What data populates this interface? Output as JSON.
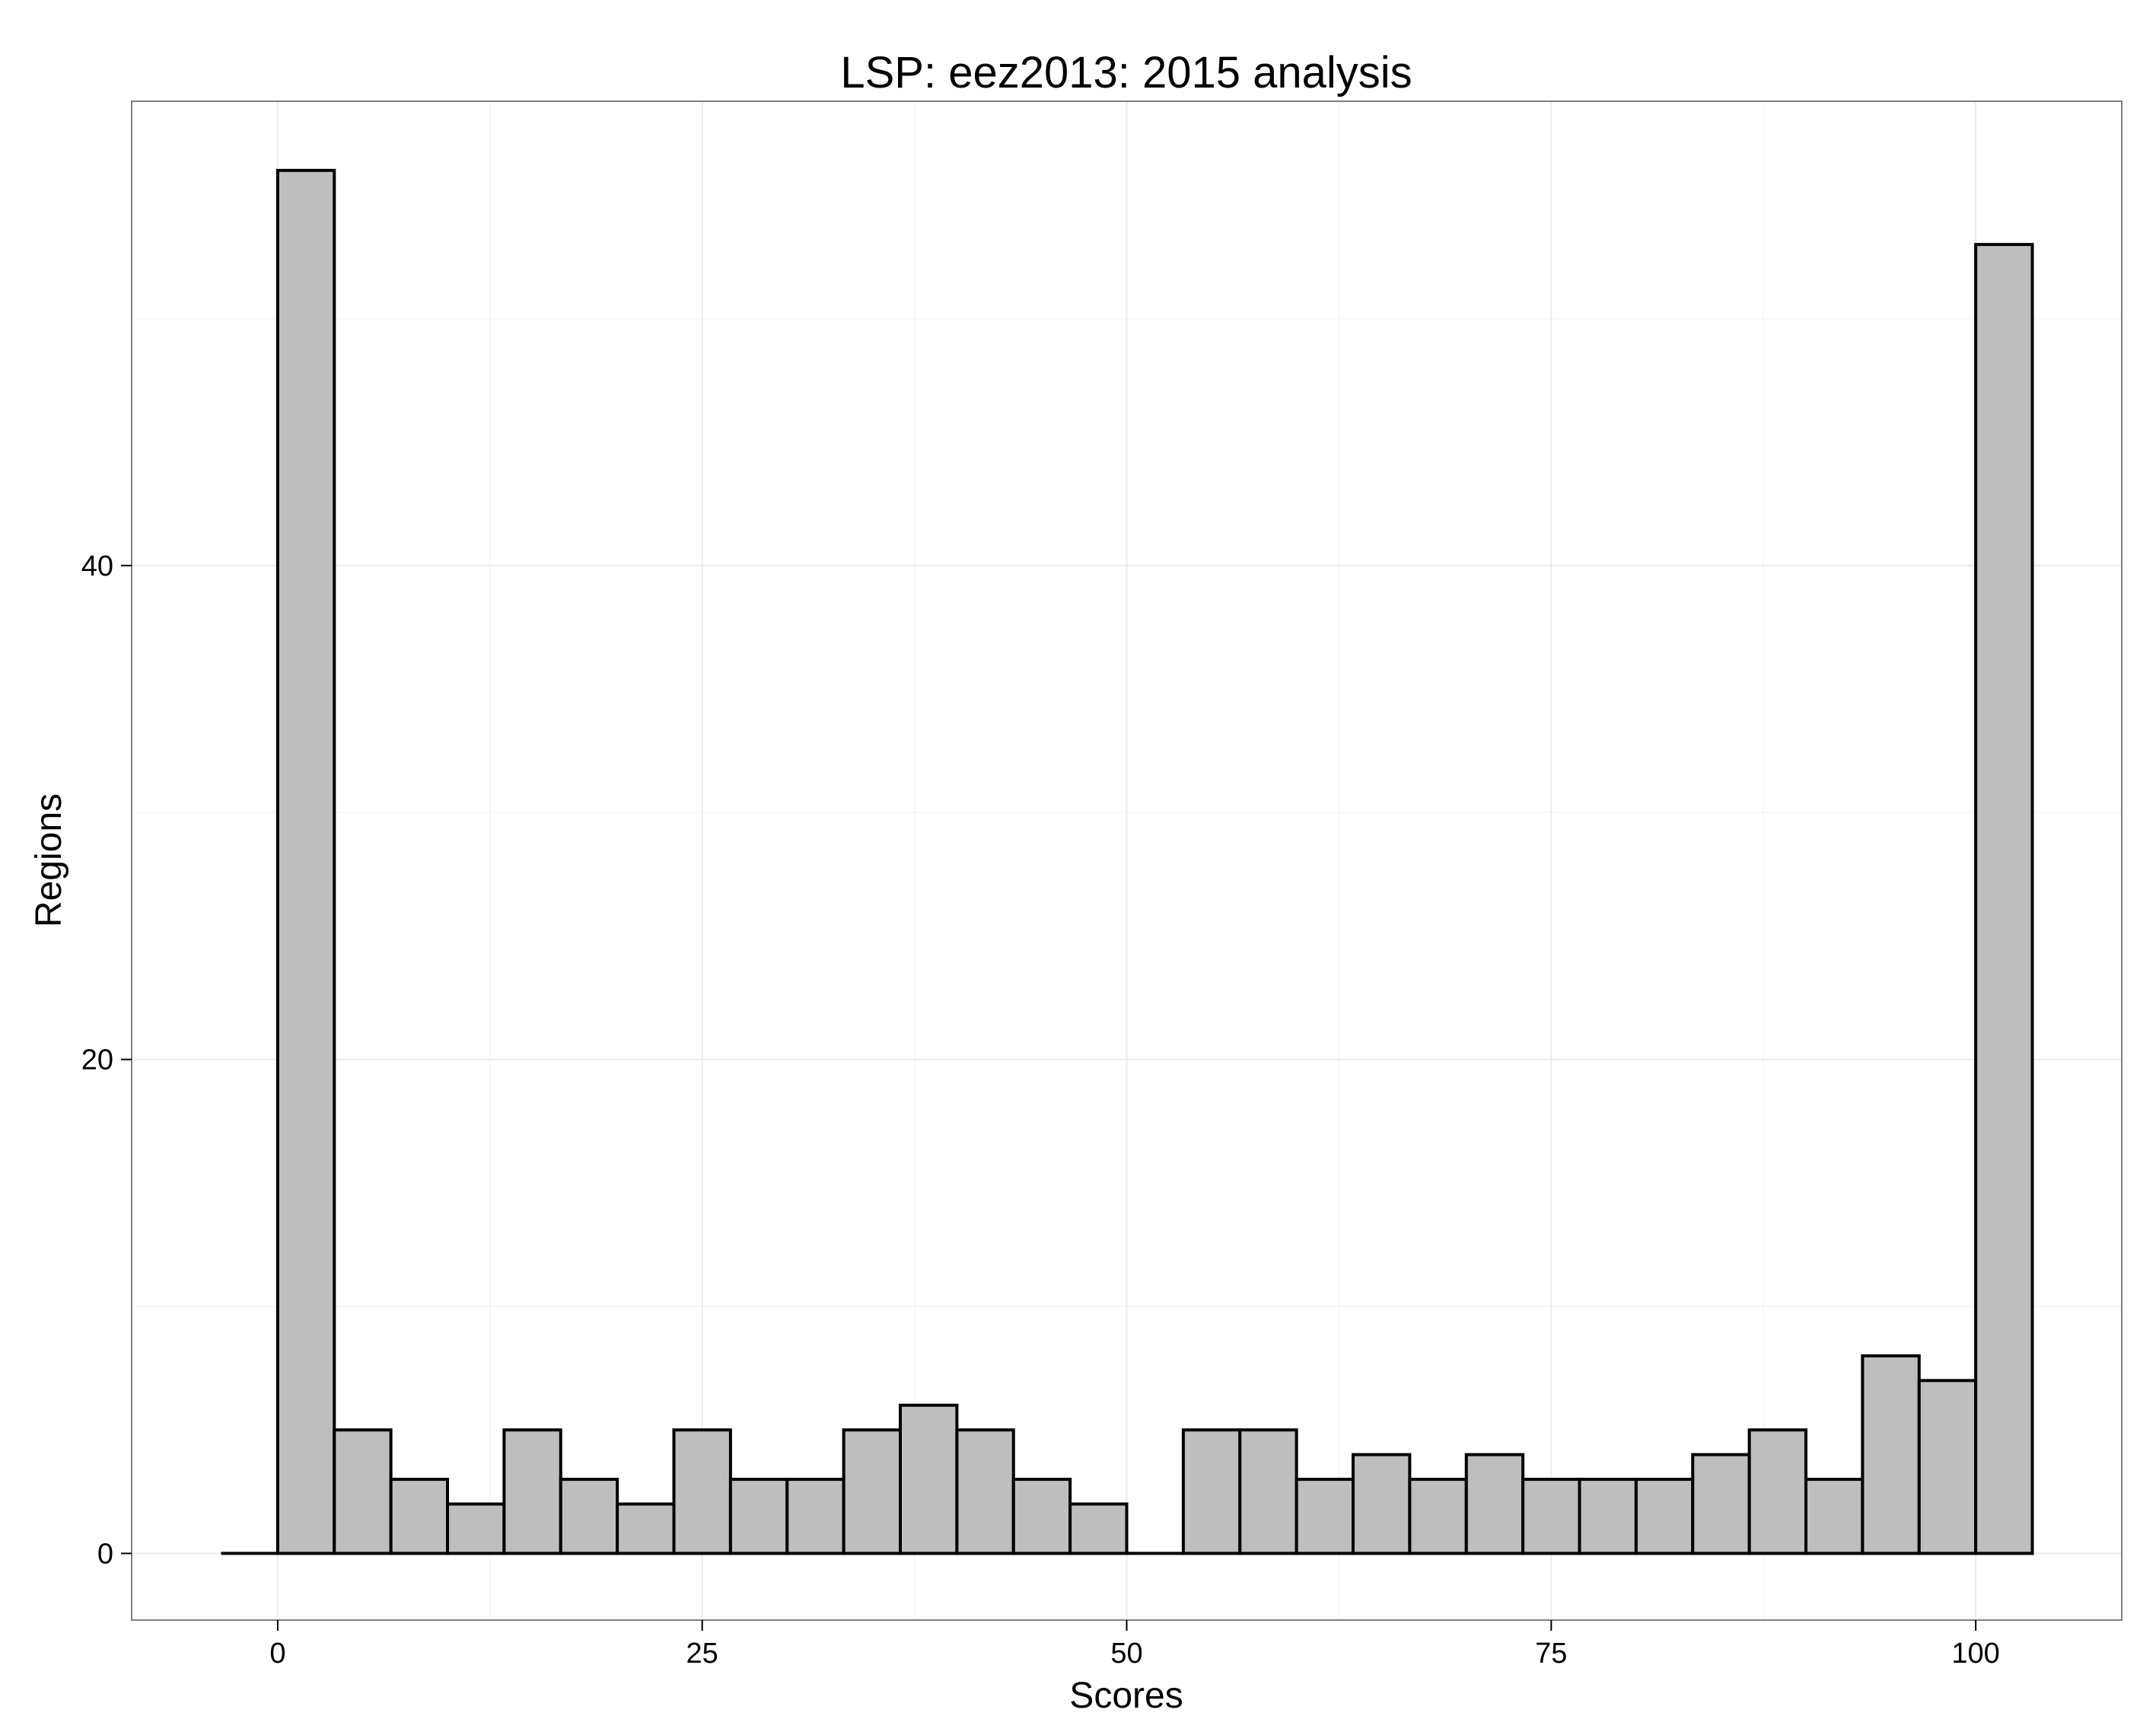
{
  "chart_data": {
    "type": "bar",
    "title": "LSP: eez2013: 2015 analysis",
    "xlabel": "Scores",
    "ylabel": "Regions",
    "bin_width": 3.333333,
    "bin_centers": [
      -1.666667,
      1.666667,
      5.0,
      8.333333,
      11.666667,
      15.0,
      18.333333,
      21.666667,
      25.0,
      28.333333,
      31.666667,
      35.0,
      38.333333,
      41.666667,
      45.0,
      48.333333,
      51.666667,
      55.0,
      58.333333,
      61.666667,
      65.0,
      68.333333,
      71.666667,
      75.0,
      78.333333,
      81.666667,
      85.0,
      88.333333,
      91.666667,
      95.0,
      98.333333,
      101.666667
    ],
    "values": [
      0,
      56,
      5,
      3,
      2,
      5,
      3,
      2,
      5,
      3,
      3,
      5,
      6,
      5,
      3,
      2,
      0,
      5,
      5,
      3,
      4,
      3,
      4,
      3,
      3,
      3,
      4,
      5,
      3,
      8,
      7,
      53
    ],
    "xlim": [
      -8.6,
      108.6
    ],
    "ylim": [
      -2.7,
      58.8
    ],
    "x_ticks": [
      0,
      25,
      50,
      75,
      100
    ],
    "y_ticks": [
      0,
      20,
      40
    ],
    "x_tick_labels": [
      "0",
      "25",
      "50",
      "75",
      "100"
    ],
    "y_tick_labels": [
      "0",
      "20",
      "40"
    ],
    "grid": true,
    "bar_fill": "#bebebe",
    "bar_stroke": "#000000",
    "panel_border": "#7f7f7f",
    "gridline_color": "#ebebeb"
  }
}
